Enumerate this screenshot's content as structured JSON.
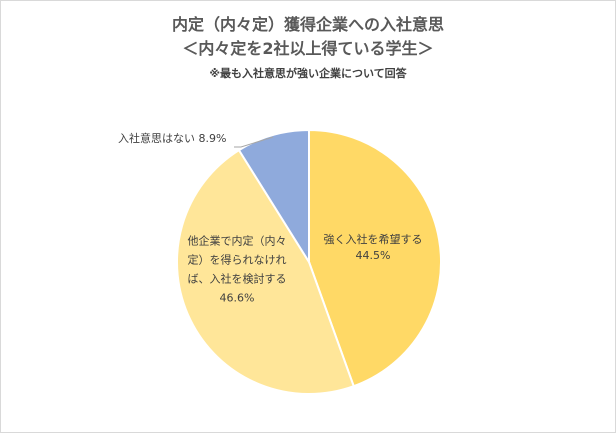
{
  "chart_data": {
    "type": "pie",
    "title": "内定（内々定）獲得企業への入社意思",
    "subtitle": "＜内々定を2社以上得ている学生＞",
    "note": "※最も入社意思が強い企業について回答",
    "slices": [
      {
        "label_lines": [
          "強く入社を希望する",
          "44.5%"
        ],
        "value": 44.5,
        "color": "#ffd966"
      },
      {
        "label_lines": [
          "他企業で内定（内々",
          "定）を得られなけれ",
          "ば、入社を検討する",
          "46.6%"
        ],
        "value": 46.6,
        "color": "#ffe699"
      },
      {
        "label_lines": [
          "入社意思はない 8.9%"
        ],
        "value": 8.9,
        "color": "#8faadc"
      }
    ],
    "start_angle_deg": 0,
    "direction": "clockwise",
    "legend": "none"
  }
}
